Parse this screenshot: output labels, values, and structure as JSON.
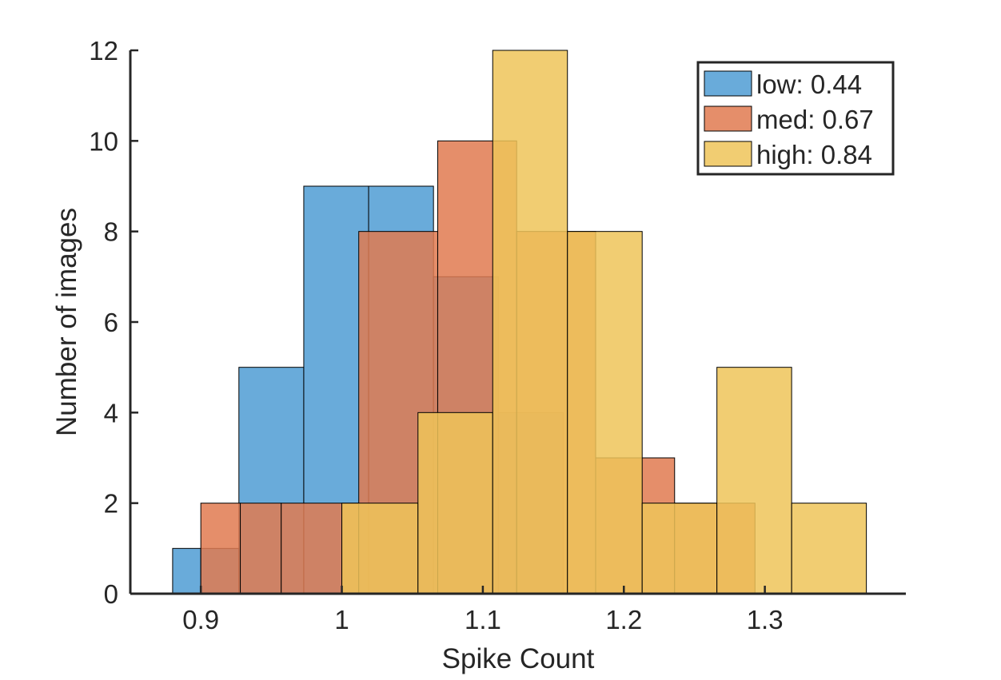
{
  "chart_data": {
    "type": "bar",
    "subtype": "overlapping-histogram",
    "title": "",
    "xlabel": "Spike Count",
    "ylabel": "Number of images",
    "xlim": [
      0.85,
      1.4
    ],
    "ylim": [
      0,
      12
    ],
    "xticks": [
      0.9,
      1,
      1.1,
      1.2,
      1.3
    ],
    "xtick_labels": [
      "0.9",
      "1",
      "1.1",
      "1.2",
      "1.3"
    ],
    "yticks": [
      0,
      2,
      4,
      6,
      8,
      10,
      12
    ],
    "ytick_labels": [
      "0",
      "2",
      "4",
      "6",
      "8",
      "10",
      "12"
    ],
    "grid": false,
    "legend_position": "top-right",
    "series": [
      {
        "name": "low: 0.44",
        "color": "#4f9cd3",
        "edges": [
          0.88,
          0.9,
          0.927,
          0.973,
          1.019,
          1.065,
          1.111,
          1.157
        ],
        "counts": [
          1,
          1,
          5,
          9,
          9,
          7,
          4
        ]
      },
      {
        "name": "med: 0.67",
        "color": "#e07a50",
        "edges": [
          0.9,
          0.928,
          0.957,
          1.0,
          1.012,
          1.068,
          1.124,
          1.18,
          1.236,
          1.293
        ],
        "counts": [
          2,
          2,
          2,
          2,
          8,
          10,
          8,
          3,
          2
        ]
      },
      {
        "name": "high: 0.84",
        "color": "#efc459",
        "edges": [
          1.0,
          1.054,
          1.107,
          1.16,
          1.213,
          1.266,
          1.319,
          1.372
        ],
        "counts": [
          2,
          4,
          12,
          8,
          2,
          5,
          2
        ]
      }
    ]
  }
}
